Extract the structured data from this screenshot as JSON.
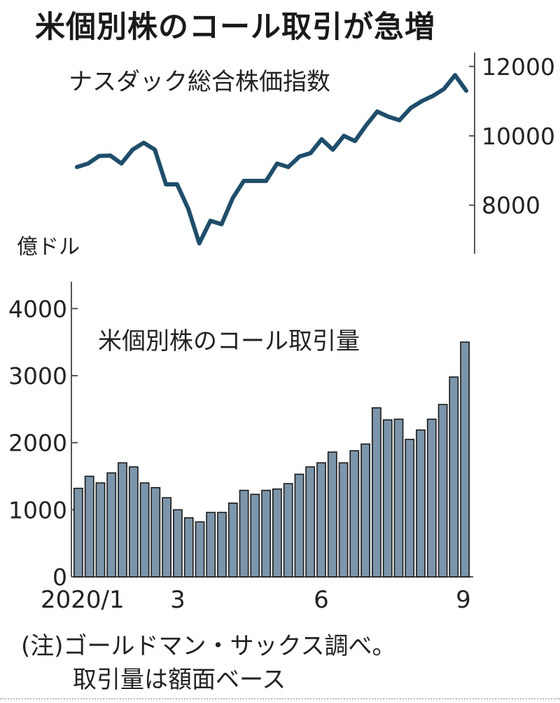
{
  "title": "米個別株のコール取引が急増",
  "notes": {
    "line1": "(注)ゴールドマン・サックス調べ。",
    "line2": "取引量は額面ベース"
  },
  "colors": {
    "line": "#1f4e6b",
    "bar_fill": "#7c95aa",
    "bar_stroke": "#1a1a1a",
    "axis": "#555555",
    "text": "#222222"
  },
  "chart_data": [
    {
      "type": "line",
      "title": "ナスダック総合株価指数",
      "ylabel": "",
      "yticks": [
        8000,
        10000,
        12000
      ],
      "ylim": [
        6600,
        12400
      ],
      "values": [
        9100,
        9200,
        9420,
        9430,
        9200,
        9600,
        9800,
        9600,
        8600,
        8600,
        7900,
        6900,
        7550,
        7450,
        8200,
        8700,
        8700,
        8700,
        9200,
        9100,
        9400,
        9500,
        9900,
        9600,
        10000,
        9850,
        10300,
        10700,
        10550,
        10450,
        10800,
        11000,
        11150,
        11350,
        11750,
        11300
      ]
    },
    {
      "type": "bar",
      "title": "米個別株のコール取引量",
      "ylabel": "億ドル",
      "yticks": [
        0,
        1000,
        2000,
        3000,
        4000
      ],
      "ylim": [
        0,
        4400
      ],
      "xtick_labels": [
        "2020/1",
        "3",
        "6",
        "9"
      ],
      "values": [
        1320,
        1500,
        1400,
        1550,
        1700,
        1640,
        1400,
        1330,
        1180,
        1000,
        880,
        820,
        960,
        960,
        1100,
        1290,
        1230,
        1290,
        1310,
        1390,
        1530,
        1640,
        1700,
        1860,
        1700,
        1880,
        1980,
        2520,
        2340,
        2350,
        2050,
        2190,
        2350,
        2570,
        2980,
        3500
      ]
    }
  ]
}
